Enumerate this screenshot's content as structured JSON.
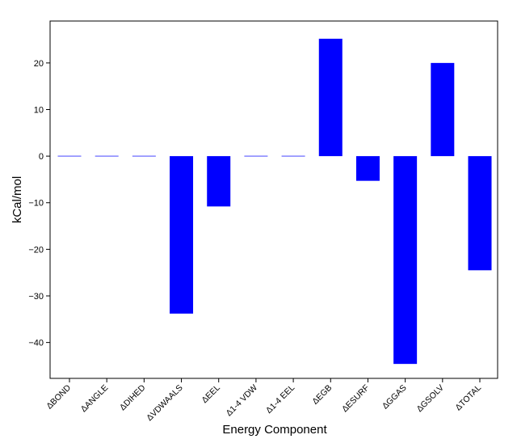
{
  "chart_data": {
    "type": "bar",
    "title": "",
    "xlabel": "Energy Component",
    "ylabel": "kCal/mol",
    "categories": [
      "ΔBOND",
      "ΔANGLE",
      "ΔDIHED",
      "ΔVDWAALS",
      "ΔEEL",
      "Δ1-4 VDW",
      "Δ1-4 EEL",
      "ΔEGB",
      "ΔESURF",
      "ΔGGAS",
      "ΔGSOLV",
      "ΔTOTAL"
    ],
    "values": [
      0,
      0,
      0,
      -33.8,
      -10.8,
      0,
      0,
      25.2,
      -5.3,
      -44.6,
      20.0,
      -24.5
    ],
    "ylim": [
      -47.7,
      29.0
    ],
    "yticks": [
      -40,
      -30,
      -20,
      -10,
      0,
      10,
      20
    ],
    "ytick_labels": [
      "−40",
      "−30",
      "−20",
      "−10",
      "0",
      "10",
      "20"
    ],
    "bar_color": "#0000ff",
    "zero_bar_color": "#6b6bff",
    "grid": false,
    "legend": "none"
  }
}
